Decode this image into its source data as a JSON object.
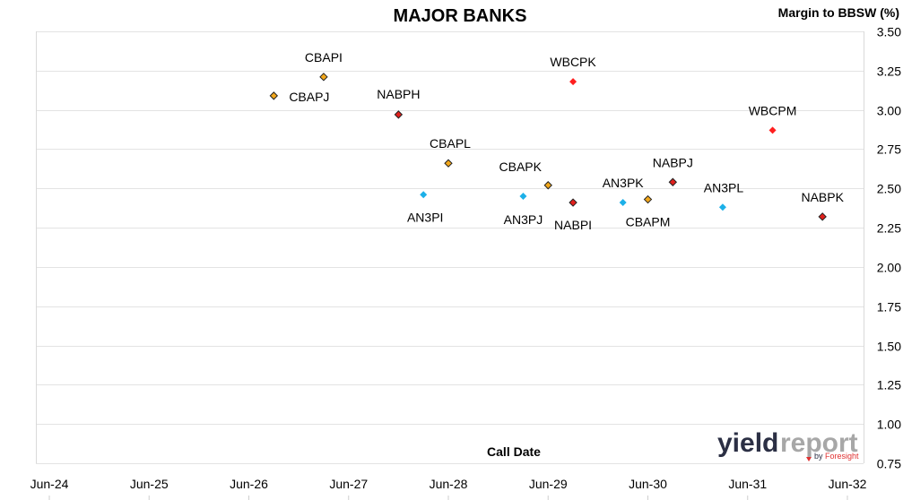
{
  "chart_data": {
    "type": "scatter",
    "title": "MAJOR BANKS",
    "xlabel": "Call Date",
    "ylabel": "Margin to BBSW (%)",
    "x_ticks": [
      "Jun-24",
      "Jun-25",
      "Jun-26",
      "Jun-27",
      "Jun-28",
      "Jun-29",
      "Jun-30",
      "Jun-31",
      "Jun-32"
    ],
    "y_ticks": [
      "0.75",
      "1.00",
      "1.25",
      "1.50",
      "1.75",
      "2.00",
      "2.25",
      "2.50",
      "2.75",
      "3.00",
      "3.25",
      "3.50"
    ],
    "xlim": [
      "Jun-24",
      "Jun-32"
    ],
    "ylim": [
      0.75,
      3.5
    ],
    "grid": "horizontal",
    "legend": "none",
    "colors": {
      "CBA": "#f2a71b",
      "NAB": "#e0201c",
      "WBC": "#ff1f1f",
      "ANZ": "#1cb0e8"
    },
    "points": [
      {
        "label": "CBAPI",
        "x": "Mar-27",
        "y": 3.21,
        "group": "CBA"
      },
      {
        "label": "CBAPJ",
        "x": "Sep-26",
        "y": 3.09,
        "group": "CBA"
      },
      {
        "label": "NABPH",
        "x": "Dec-27",
        "y": 2.97,
        "group": "NAB"
      },
      {
        "label": "CBAPL",
        "x": "Jun-28",
        "y": 2.66,
        "group": "CBA"
      },
      {
        "label": "AN3PI",
        "x": "Mar-28",
        "y": 2.46,
        "group": "ANZ"
      },
      {
        "label": "CBAPK",
        "x": "Jun-29",
        "y": 2.52,
        "group": "CBA"
      },
      {
        "label": "AN3PJ",
        "x": "Mar-29",
        "y": 2.45,
        "group": "ANZ"
      },
      {
        "label": "WBCPK",
        "x": "Sep-29",
        "y": 3.18,
        "group": "WBC"
      },
      {
        "label": "NABPI",
        "x": "Sep-29",
        "y": 2.41,
        "group": "NAB"
      },
      {
        "label": "AN3PK",
        "x": "Mar-30",
        "y": 2.41,
        "group": "ANZ"
      },
      {
        "label": "CBAPM",
        "x": "Jun-30",
        "y": 2.43,
        "group": "CBA"
      },
      {
        "label": "NABPJ",
        "x": "Sep-30",
        "y": 2.54,
        "group": "NAB"
      },
      {
        "label": "AN3PL",
        "x": "Mar-31",
        "y": 2.38,
        "group": "ANZ"
      },
      {
        "label": "WBCPM",
        "x": "Sep-31",
        "y": 2.87,
        "group": "WBC"
      },
      {
        "label": "NABPK",
        "x": "Mar-32",
        "y": 2.32,
        "group": "NAB"
      }
    ]
  },
  "watermark": {
    "brand_main": "yield",
    "brand_accent": "report",
    "tagline_by": "by",
    "tagline_name": "Foresight"
  }
}
